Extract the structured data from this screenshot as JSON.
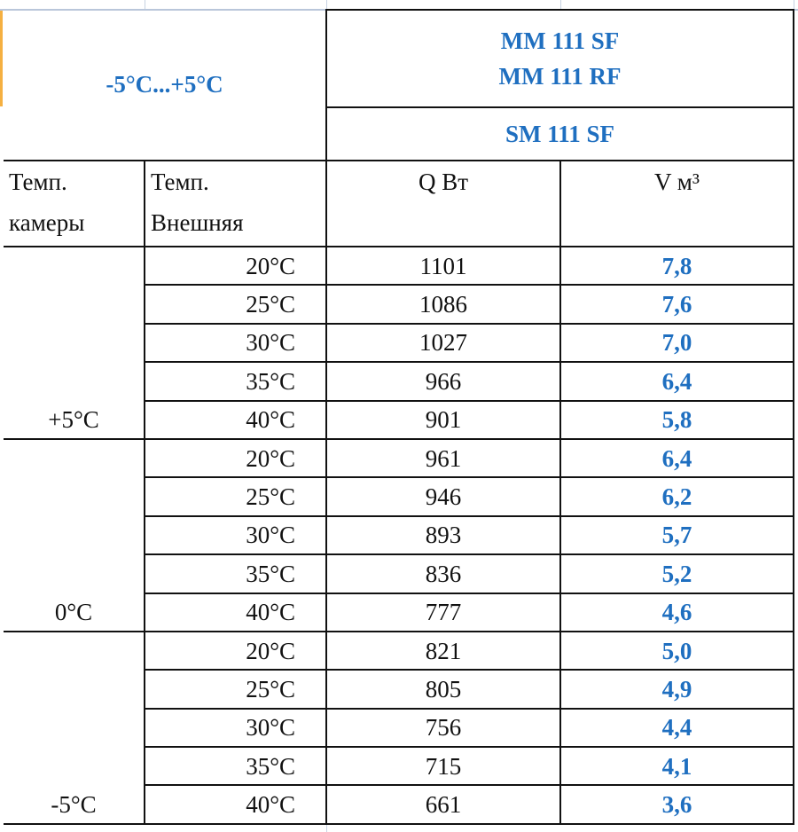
{
  "header": {
    "range": "-5°C...+5°C",
    "models_line1": "MM 111 SF",
    "models_line2": "MM 111 RF",
    "model_alt": "SM 111 SF"
  },
  "columns": {
    "chamber_temp": [
      "Темп.",
      "камеры"
    ],
    "external_temp": [
      "Темп.",
      "Внешняя"
    ],
    "q": "Q Вт",
    "v": "V м³"
  },
  "colors": {
    "accent": "#1f6fc0",
    "border": "#111111"
  },
  "groups": [
    {
      "chamber": "+5°C",
      "rows": [
        {
          "ext": "20°C",
          "q": "1101",
          "v": "7,8"
        },
        {
          "ext": "25°C",
          "q": "1086",
          "v": "7,6"
        },
        {
          "ext": "30°C",
          "q": "1027",
          "v": "7,0"
        },
        {
          "ext": "35°C",
          "q": "966",
          "v": "6,4"
        },
        {
          "ext": "40°C",
          "q": "901",
          "v": "5,8"
        }
      ]
    },
    {
      "chamber": "0°C",
      "rows": [
        {
          "ext": "20°C",
          "q": "961",
          "v": "6,4"
        },
        {
          "ext": "25°C",
          "q": "946",
          "v": "6,2"
        },
        {
          "ext": "30°C",
          "q": "893",
          "v": "5,7"
        },
        {
          "ext": "35°C",
          "q": "836",
          "v": "5,2"
        },
        {
          "ext": "40°C",
          "q": "777",
          "v": "4,6"
        }
      ]
    },
    {
      "chamber": "-5°C",
      "rows": [
        {
          "ext": "20°C",
          "q": "821",
          "v": "5,0"
        },
        {
          "ext": "25°C",
          "q": "805",
          "v": "4,9"
        },
        {
          "ext": "30°C",
          "q": "756",
          "v": "4,4"
        },
        {
          "ext": "35°C",
          "q": "715",
          "v": "4,1"
        },
        {
          "ext": "40°C",
          "q": "661",
          "v": "3,6"
        }
      ]
    }
  ]
}
